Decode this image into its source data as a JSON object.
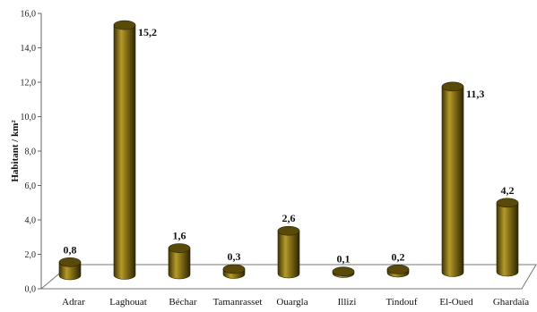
{
  "chart_data": {
    "type": "bar",
    "style": "3d-cylinder",
    "ylabel": "Habitant / km²",
    "ylim": [
      0,
      16
    ],
    "yticks": [
      "0,0",
      "2,0",
      "4,0",
      "6,0",
      "8,0",
      "10,0",
      "12,0",
      "14,0",
      "16,0"
    ],
    "categories": [
      "Adrar",
      "Laghouat",
      "Béchar",
      "Tamanrasset",
      "Ouargla",
      "Illizi",
      "Tindouf",
      "El-Oued",
      "Ghardaïa"
    ],
    "values": [
      0.8,
      15.2,
      1.6,
      0.3,
      2.6,
      0.1,
      0.2,
      11.3,
      4.2
    ],
    "value_labels": [
      "0,8",
      "15,2",
      "1,6",
      "0,3",
      "2,6",
      "0,1",
      "0,2",
      "11,3",
      "4,2"
    ],
    "bar_color": "#6b5a10",
    "bar_highlight": "#c9b040",
    "bar_top": "#5a4a0a",
    "grid": false,
    "legend": "none"
  }
}
